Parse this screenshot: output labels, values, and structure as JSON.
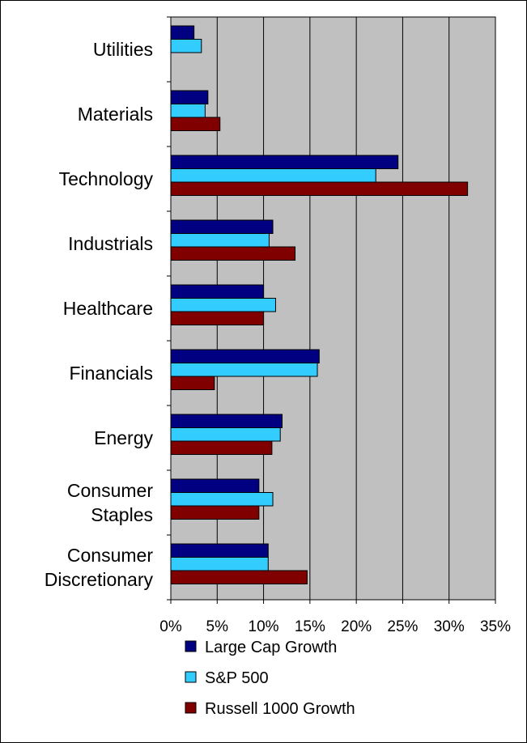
{
  "chart_data": {
    "type": "bar",
    "orientation": "horizontal",
    "categories": [
      "Utilities",
      "Materials",
      "Technology",
      "Industrials",
      "Healthcare",
      "Financials",
      "Energy",
      "Consumer Staples",
      "Consumer Discretionary"
    ],
    "category_label_lines": [
      [
        "Utilities"
      ],
      [
        "Materials"
      ],
      [
        "Technology"
      ],
      [
        "Industrials"
      ],
      [
        "Healthcare"
      ],
      [
        "Financials"
      ],
      [
        "Energy"
      ],
      [
        "Consumer",
        "Staples"
      ],
      [
        "Consumer",
        "Discretionary"
      ]
    ],
    "series": [
      {
        "name": "Large Cap Growth",
        "color": "#000080",
        "values": [
          2.5,
          4.0,
          24.5,
          11.0,
          10.0,
          16.0,
          12.0,
          9.5,
          10.5
        ]
      },
      {
        "name": "S&P 500",
        "color": "#33ccff",
        "values": [
          3.3,
          3.7,
          22.1,
          10.6,
          11.3,
          15.8,
          11.8,
          11.0,
          10.5
        ]
      },
      {
        "name": "Russell 1000 Growth",
        "color": "#800000",
        "values": [
          0,
          5.3,
          32.0,
          13.4,
          10.0,
          4.7,
          10.9,
          9.5,
          14.7
        ]
      }
    ],
    "xlim": [
      0,
      35
    ],
    "ticks": [
      "0%",
      "5%",
      "10%",
      "15%",
      "20%",
      "25%",
      "30%",
      "35%"
    ],
    "grid": true,
    "plot_background": "#c0c0c0",
    "legend_position": "bottom",
    "title": "",
    "xlabel": "",
    "ylabel": ""
  }
}
